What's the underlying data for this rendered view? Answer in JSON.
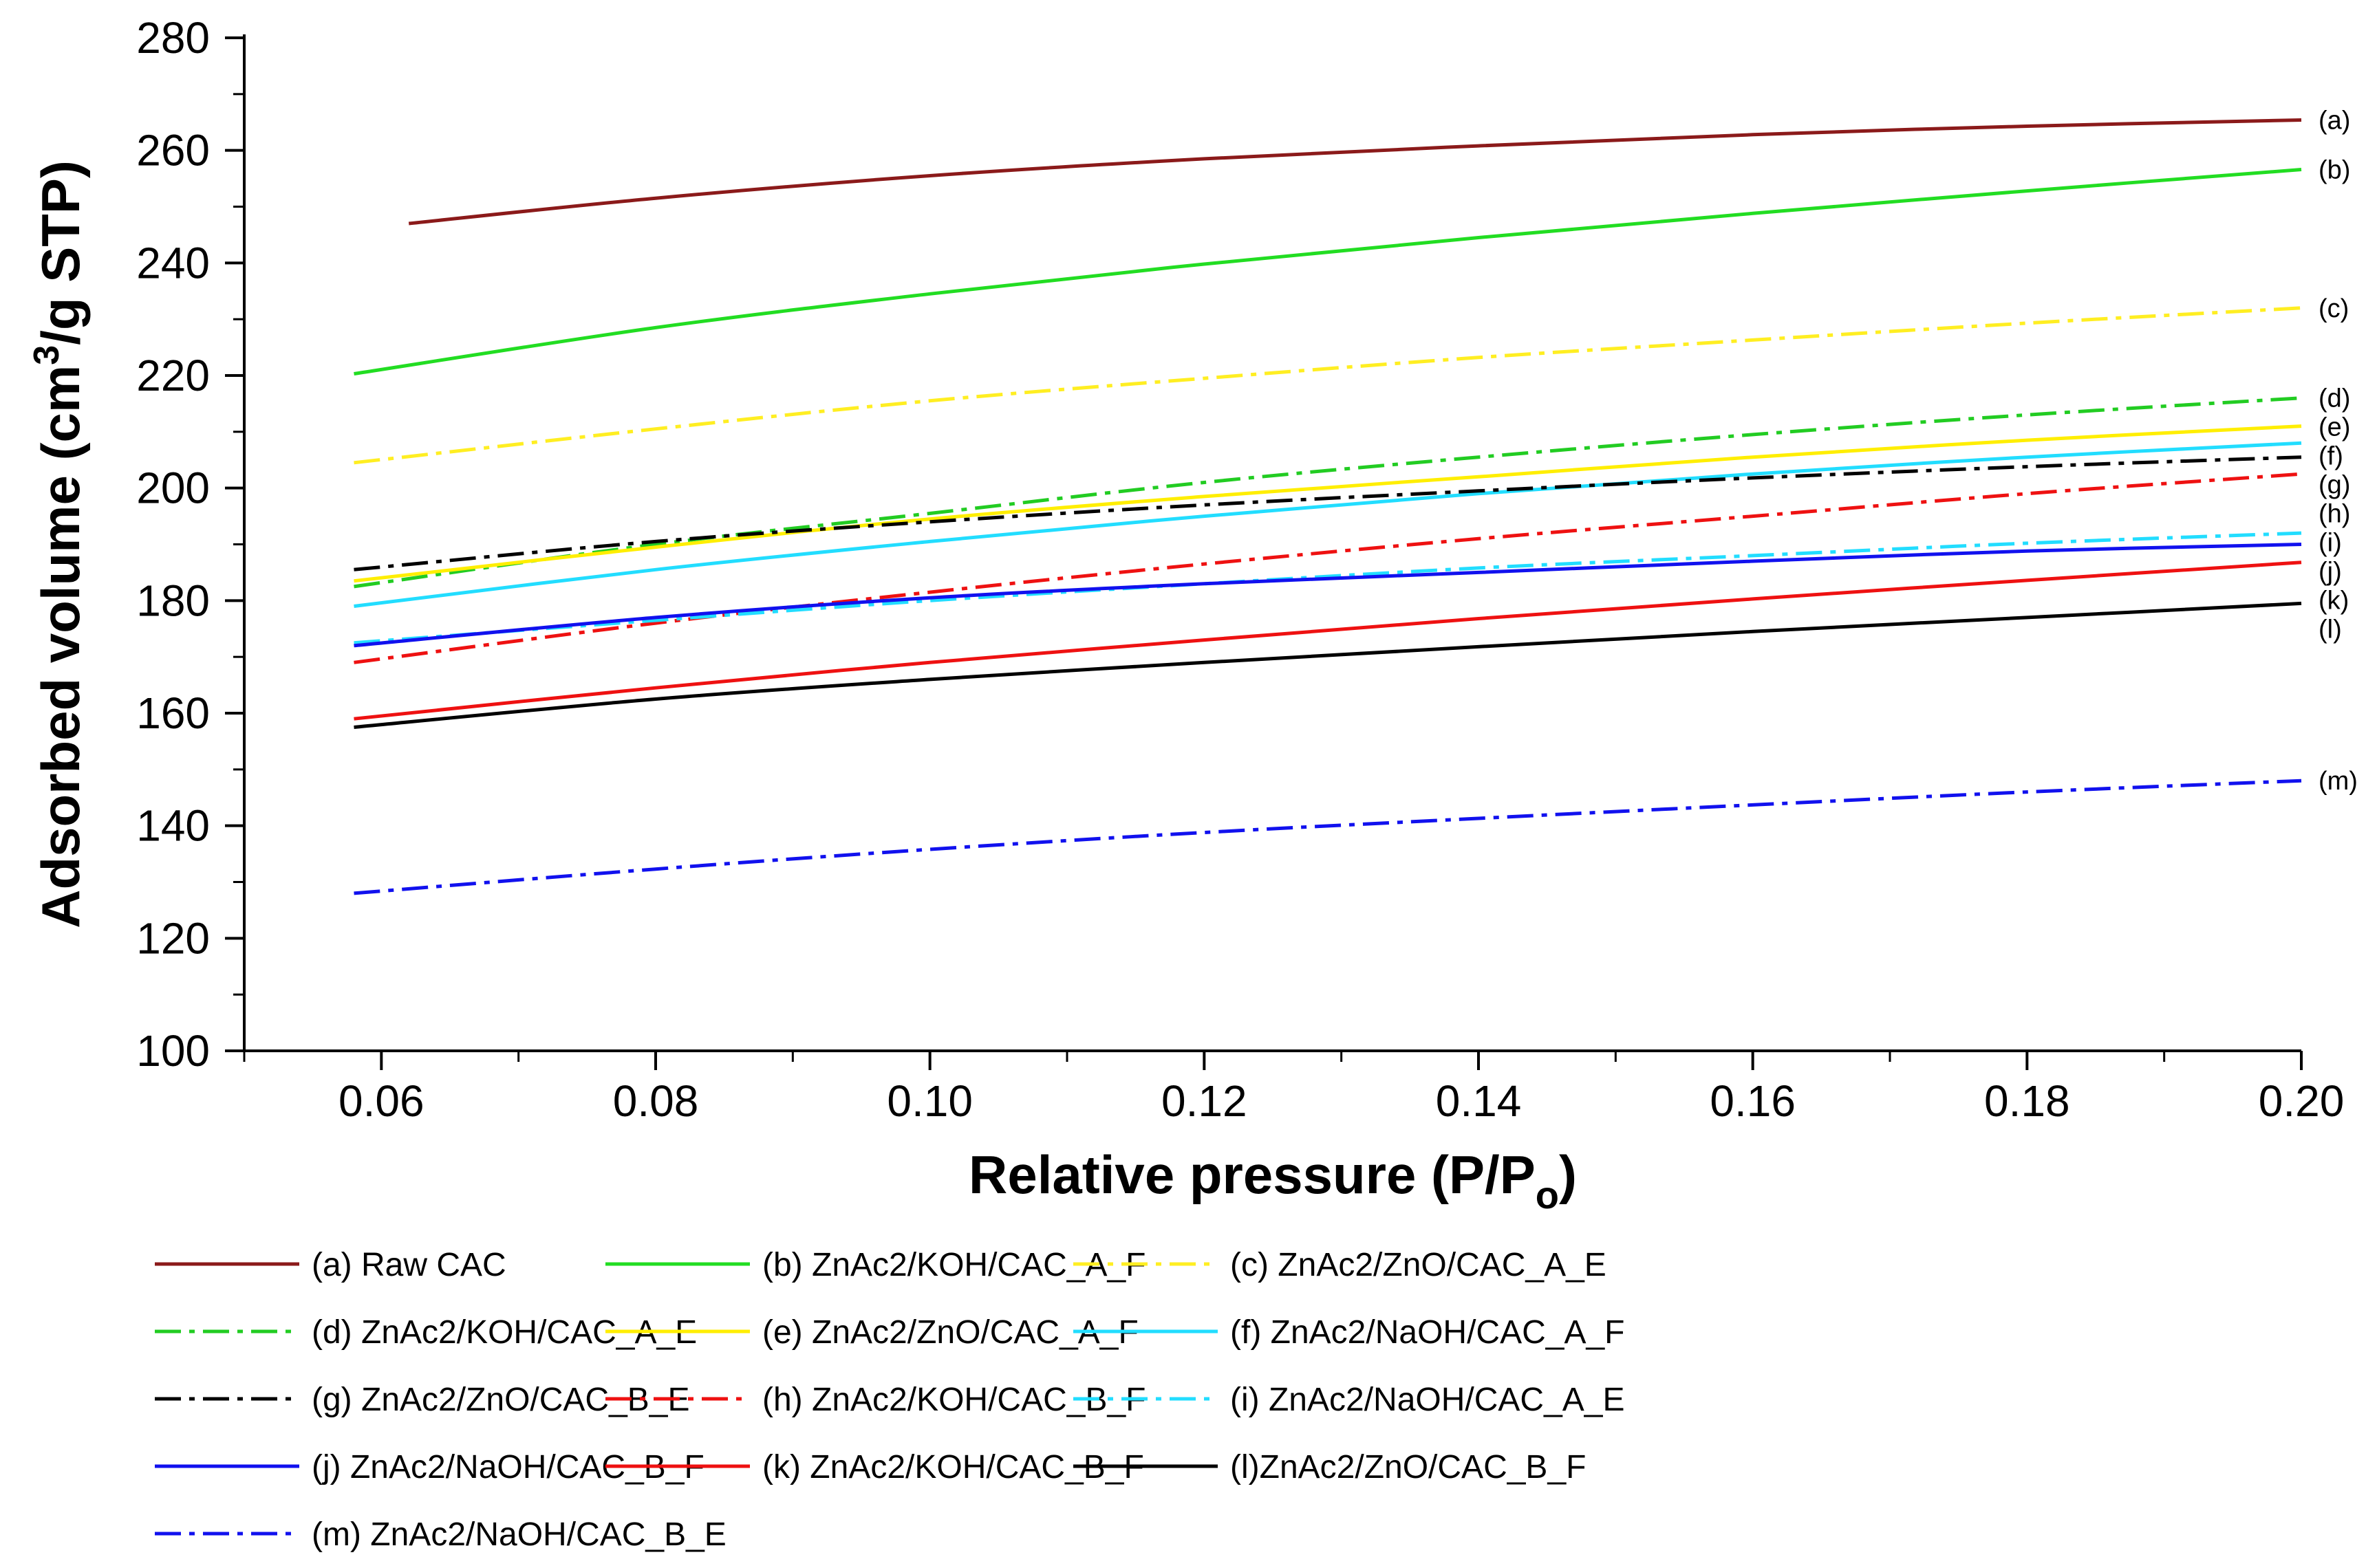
{
  "chart_data": {
    "type": "line",
    "title": "",
    "xlabel_main": "Relative pressure (P/P",
    "xlabel_sub": "o",
    "xlabel_end": ")",
    "ylabel_main": "Adsorbed volume (cm",
    "ylabel_sup": "3",
    "ylabel_end": "/g STP)",
    "xlim": [
      0.05,
      0.2
    ],
    "ylim": [
      100,
      280
    ],
    "xticks": [
      0.06,
      0.08,
      0.1,
      0.12,
      0.14,
      0.16,
      0.18,
      0.2
    ],
    "xtick_labels": [
      "0.06",
      "0.08",
      "0.10",
      "0.12",
      "0.14",
      "0.16",
      "0.18",
      "0.20"
    ],
    "yticks": [
      100,
      120,
      140,
      160,
      180,
      200,
      220,
      240,
      260,
      280
    ],
    "ytick_labels": [
      "100",
      "120",
      "140",
      "160",
      "180",
      "200",
      "220",
      "240",
      "260",
      "280"
    ],
    "series": [
      {
        "name": "(a) Raw CAC",
        "end_label": "(a)",
        "color": "#8b1a1a",
        "dash": "solid",
        "x": [
          0.062,
          0.08,
          0.1,
          0.12,
          0.14,
          0.16,
          0.18,
          0.2
        ],
        "y": [
          247,
          251.5,
          255.5,
          258.5,
          260.8,
          262.8,
          264.3,
          265.4
        ]
      },
      {
        "name": "(b) ZnAc2/KOH/CAC_A_F",
        "end_label": "(b)",
        "color": "#22dd22",
        "dash": "solid",
        "x": [
          0.058,
          0.08,
          0.1,
          0.12,
          0.14,
          0.16,
          0.18,
          0.2
        ],
        "y": [
          220.3,
          228.5,
          234.5,
          239.8,
          244.5,
          248.8,
          252.8,
          256.6
        ]
      },
      {
        "name": "(c) ZnAc2/ZnO/CAC_A_E",
        "end_label": "(c)",
        "color": "#ffee22",
        "dash": "dashdot",
        "x": [
          0.058,
          0.08,
          0.1,
          0.12,
          0.14,
          0.16,
          0.18,
          0.2
        ],
        "y": [
          204.5,
          210.5,
          215.5,
          219.5,
          223.2,
          226.3,
          229.3,
          232
        ]
      },
      {
        "name": "(d) ZnAc2/KOH/CAC_A_E",
        "end_label": "(d)",
        "color": "#22cc22",
        "dash": "dashdot",
        "x": [
          0.058,
          0.08,
          0.1,
          0.12,
          0.14,
          0.16,
          0.18,
          0.2
        ],
        "y": [
          182.5,
          190,
          195.5,
          201,
          205.5,
          209.5,
          213,
          216
        ]
      },
      {
        "name": "(e) ZnAc2/ZnO/CAC_A_F",
        "end_label": "(e)",
        "color": "#ffee00",
        "dash": "solid",
        "x": [
          0.058,
          0.08,
          0.1,
          0.12,
          0.14,
          0.16,
          0.18,
          0.2
        ],
        "y": [
          183.5,
          189.5,
          194.5,
          198.5,
          202,
          205.5,
          208.5,
          211
        ]
      },
      {
        "name": "(f) ZnAc2/NaOH/CAC_A_F",
        "end_label": "(f)",
        "color": "#22ddff",
        "dash": "solid",
        "x": [
          0.058,
          0.08,
          0.1,
          0.12,
          0.14,
          0.16,
          0.18,
          0.2
        ],
        "y": [
          179,
          185.5,
          190.5,
          195,
          199,
          202.5,
          205.5,
          208
        ]
      },
      {
        "name": "(g) ZnAc2/ZnO/CAC_B_E",
        "end_label": "(g)",
        "color": "#000000",
        "dash": "dashdot",
        "x": [
          0.058,
          0.08,
          0.1,
          0.12,
          0.14,
          0.16,
          0.18,
          0.2
        ],
        "y": [
          185.5,
          190.5,
          194,
          197,
          199.5,
          201.8,
          203.8,
          205.5
        ]
      },
      {
        "name": "(h) ZnAc2/KOH/CAC_B_F",
        "end_label": "(h)",
        "color": "#ee1111",
        "dash": "dashdot",
        "x": [
          0.058,
          0.08,
          0.1,
          0.12,
          0.14,
          0.16,
          0.18,
          0.2
        ],
        "y": [
          169,
          176,
          181.5,
          186.5,
          191,
          195,
          199,
          202.5
        ]
      },
      {
        "name": "(i) ZnAc2/NaOH/CAC_A_E",
        "end_label": "(i)",
        "color": "#22ddff",
        "dash": "dashdot",
        "x": [
          0.058,
          0.08,
          0.1,
          0.12,
          0.14,
          0.16,
          0.18,
          0.2
        ],
        "y": [
          172.5,
          176.5,
          180,
          183,
          185.8,
          188,
          190.2,
          192
        ]
      },
      {
        "name": "(j) ZnAc2/NaOH/CAC_B_F",
        "end_label": "(j)",
        "color": "#1111ee",
        "dash": "solid",
        "x": [
          0.058,
          0.08,
          0.1,
          0.12,
          0.14,
          0.16,
          0.18,
          0.2
        ],
        "y": [
          172,
          177,
          180.5,
          183,
          185,
          187,
          188.8,
          190
        ]
      },
      {
        "name": "(k) ZnAc2/KOH/CAC_B_F",
        "end_label": "(k)",
        "color": "#ee1111",
        "dash": "solid",
        "x": [
          0.058,
          0.08,
          0.1,
          0.12,
          0.14,
          0.16,
          0.18,
          0.2
        ],
        "y": [
          159,
          164.5,
          169,
          173,
          176.8,
          180.3,
          183.6,
          186.8
        ]
      },
      {
        "name": "(l)ZnAc2/ZnO/CAC_B_F",
        "end_label": "(l)",
        "color": "#000000",
        "dash": "solid",
        "x": [
          0.058,
          0.08,
          0.1,
          0.12,
          0.14,
          0.16,
          0.18,
          0.2
        ],
        "y": [
          157.5,
          162.5,
          166,
          169,
          171.8,
          174.5,
          177,
          179.5
        ]
      },
      {
        "name": "(m) ZnAc2/NaOH/CAC_B_E",
        "end_label": "(m)",
        "color": "#1111ee",
        "dash": "dashdot",
        "x": [
          0.058,
          0.08,
          0.1,
          0.12,
          0.14,
          0.16,
          0.18,
          0.2
        ],
        "y": [
          128,
          132.3,
          135.8,
          138.8,
          141.3,
          143.7,
          146,
          148
        ]
      }
    ]
  }
}
